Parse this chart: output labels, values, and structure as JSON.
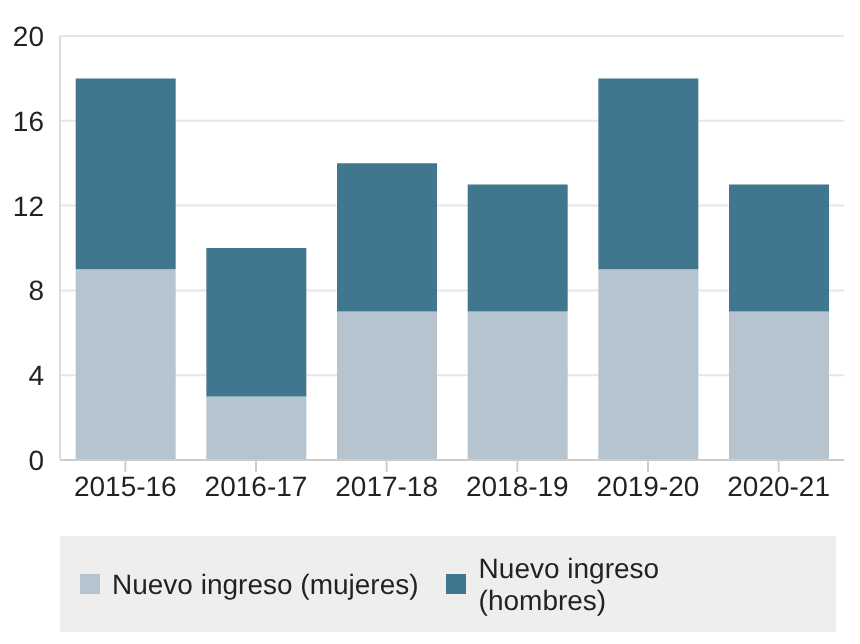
{
  "chart_data": {
    "type": "bar",
    "stacked": true,
    "categories": [
      "2015-16",
      "2016-17",
      "2017-18",
      "2018-19",
      "2019-20",
      "2020-21"
    ],
    "series": [
      {
        "name": "Nuevo ingreso (mujeres)",
        "color": "#b5c4cf",
        "values": [
          9,
          3,
          7,
          7,
          9,
          7
        ]
      },
      {
        "name": "Nuevo ingreso (hombres)",
        "color": "#41768f",
        "values": [
          9,
          7,
          7,
          6,
          9,
          6
        ]
      }
    ],
    "ylim": [
      0,
      20
    ],
    "yticks": [
      0,
      4,
      8,
      12,
      16,
      20
    ],
    "grid": "y",
    "legend": "bottom"
  }
}
